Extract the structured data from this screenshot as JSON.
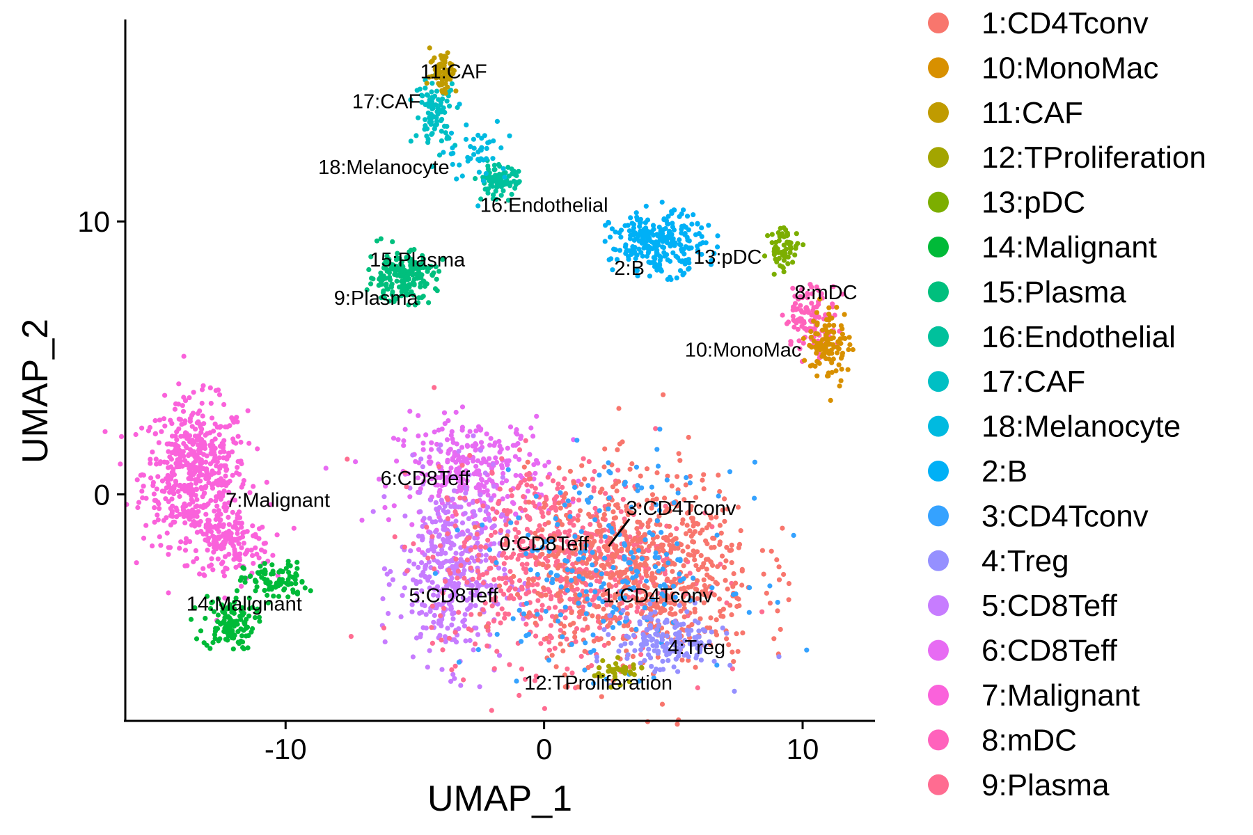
{
  "chart_data": {
    "type": "scatter",
    "title": "",
    "xlabel": "UMAP_1",
    "ylabel": "UMAP_2",
    "xlim": [
      -16.2,
      12.8
    ],
    "ylim": [
      -8.3,
      17.4
    ],
    "xticks": [
      -10,
      0,
      10
    ],
    "yticks": [
      0,
      10
    ],
    "xtick_labels": [
      "-10",
      "0",
      "10"
    ],
    "ytick_labels": [
      "0",
      "10"
    ],
    "grid": false,
    "legend_position": "right",
    "legend": [
      {
        "name": "1:CD4Tconv",
        "color": "#F8766D"
      },
      {
        "name": "10:MonoMac",
        "color": "#D89000"
      },
      {
        "name": "11:CAF",
        "color": "#C09B00"
      },
      {
        "name": "12:TProliferation",
        "color": "#A3A500"
      },
      {
        "name": "13:pDC",
        "color": "#7CAE00"
      },
      {
        "name": "14:Malignant",
        "color": "#00BA38"
      },
      {
        "name": "15:Plasma",
        "color": "#00BF7D"
      },
      {
        "name": "16:Endothelial",
        "color": "#00C19C"
      },
      {
        "name": "17:CAF",
        "color": "#00BFC4"
      },
      {
        "name": "18:Melanocyte",
        "color": "#00BAE0"
      },
      {
        "name": "2:B",
        "color": "#00B0F6"
      },
      {
        "name": "3:CD4Tconv",
        "color": "#35A2FF"
      },
      {
        "name": "4:Treg",
        "color": "#9590FF"
      },
      {
        "name": "5:CD8Teff",
        "color": "#C77CFF"
      },
      {
        "name": "6:CD8Teff",
        "color": "#E76BF3"
      },
      {
        "name": "7:Malignant",
        "color": "#FA62DB"
      },
      {
        "name": "8:mDC",
        "color": "#FF62BC"
      },
      {
        "name": "9:Plasma",
        "color": "#FF6C91"
      }
    ],
    "cluster_labels": [
      {
        "text": "11:CAF",
        "x": -3.5,
        "y": 15.5
      },
      {
        "text": "17:CAF",
        "x": -6.1,
        "y": 14.4
      },
      {
        "text": "18:Melanocyte",
        "x": -6.2,
        "y": 12.0
      },
      {
        "text": "16:Endothelial",
        "x": 0.0,
        "y": 10.6
      },
      {
        "text": "15:Plasma",
        "x": -4.9,
        "y": 8.6
      },
      {
        "text": "9:Plasma",
        "x": -6.5,
        "y": 7.2
      },
      {
        "text": "2:B",
        "x": 3.3,
        "y": 8.3
      },
      {
        "text": "13:pDC",
        "x": 7.1,
        "y": 8.7
      },
      {
        "text": "8:mDC",
        "x": 10.9,
        "y": 7.4
      },
      {
        "text": "10:MonoMac",
        "x": 7.7,
        "y": 5.3
      },
      {
        "text": "6:CD8Teff",
        "x": -4.6,
        "y": 0.6
      },
      {
        "text": "7:Malignant",
        "x": -10.3,
        "y": -0.2
      },
      {
        "text": "3:CD4Tconv",
        "x": 5.3,
        "y": -0.5
      },
      {
        "text": "0:CD8Teff",
        "x": 0.0,
        "y": -1.8
      },
      {
        "text": "1:CD4Tconv",
        "x": 4.4,
        "y": -3.7
      },
      {
        "text": "5:CD8Teff",
        "x": -3.5,
        "y": -3.7
      },
      {
        "text": "14:Malignant",
        "x": -11.6,
        "y": -4.0
      },
      {
        "text": "4:Treg",
        "x": 5.9,
        "y": -5.6
      },
      {
        "text": "12:TProliferation",
        "x": 2.1,
        "y": -6.9
      }
    ]
  }
}
